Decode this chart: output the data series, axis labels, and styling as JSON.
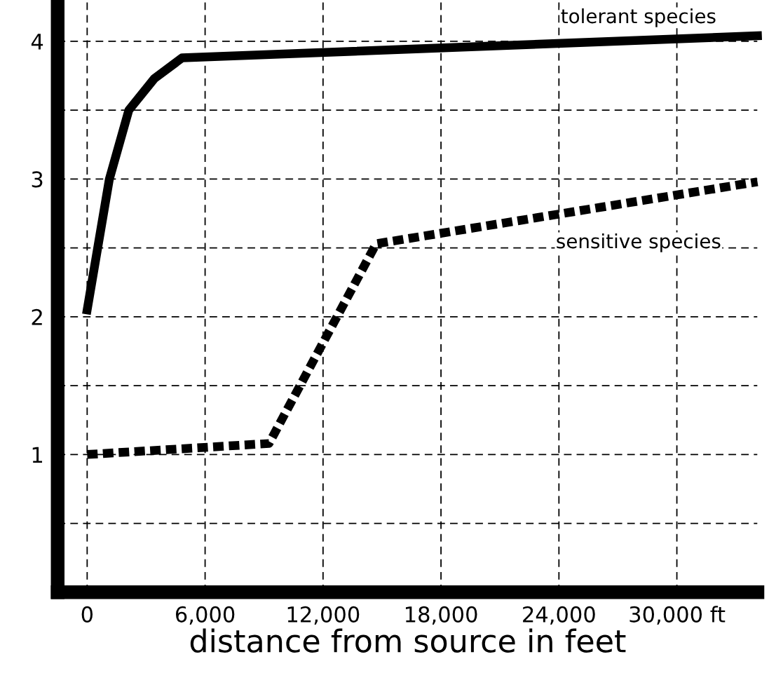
{
  "chart_data": {
    "type": "line",
    "xlabel": "distance from source in feet",
    "series": [
      {
        "color": "#000000",
        "line_style": "solid",
        "x": [
          0,
          1130,
          2120,
          3420,
          4830,
          34100
        ],
        "values": [
          2.05,
          3.0,
          3.5,
          3.73,
          3.88,
          4.04
        ]
      },
      {
        "color": "#000000",
        "line_style": "dashed",
        "x": [
          0,
          9250,
          14700,
          34100
        ],
        "values": [
          1.0,
          1.08,
          2.53,
          2.98
        ]
      }
    ],
    "annotations": [
      "tolerant species",
      "sensitive species"
    ],
    "xlim": [
      -1500,
      34100
    ],
    "xticks": [
      0,
      {
        "value": 6000,
        "label": "6,000"
      },
      {
        "value": 12000,
        "label": "12,000"
      },
      {
        "value": 18000,
        "label": "18,000"
      },
      {
        "value": 24000,
        "label": "24,000"
      },
      {
        "value": 30000,
        "label": "30,000 ft"
      }
    ],
    "ylim": [
      0,
      4.3
    ],
    "yticks": [
      {
        "value": 0.5,
        "label": null
      },
      1,
      {
        "value": 1.5,
        "label": null
      },
      2,
      {
        "value": 2.5,
        "label": null
      },
      3,
      {
        "value": 3.5,
        "label": null
      },
      4
    ],
    "grid": true,
    "legend": false,
    "marker": "none"
  }
}
